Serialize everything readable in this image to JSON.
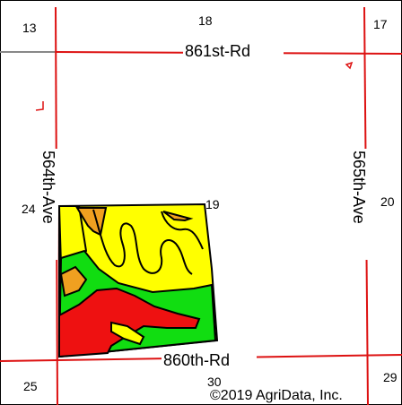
{
  "map": {
    "colors": {
      "road": "#dd1111",
      "border": "#000000",
      "background": "#ffffff",
      "soil_yellow": "#ffff00",
      "soil_orange": "#f0a020",
      "soil_green": "#11dd11",
      "soil_red": "#ee1111",
      "gray_line": "#888888"
    },
    "roads": {
      "north": "861st-Rd",
      "south": "860th-Rd",
      "west": "564th-Ave",
      "east": "565th-Ave"
    },
    "sections": [
      "13",
      "18",
      "17",
      "24",
      "19",
      "20",
      "25",
      "30",
      "29"
    ],
    "copyright": "©2019 AgriData, Inc."
  }
}
